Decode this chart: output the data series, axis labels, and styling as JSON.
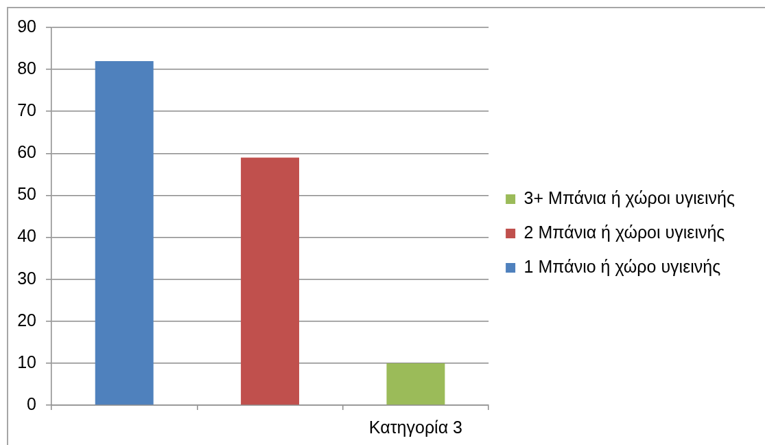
{
  "chart_data": {
    "type": "bar",
    "categories": [
      null,
      null,
      "Κατηγορία 3"
    ],
    "series": [
      {
        "name": "3+ Μπάνια ή χώροι υγιεινής",
        "color": "#9bbb59",
        "values": [
          null,
          null,
          10
        ]
      },
      {
        "name": "2 Μπάνια ή χώροι υγιεινής",
        "color": "#c0504d",
        "values": [
          null,
          59,
          null
        ]
      },
      {
        "name": "1 Μπάνιο ή χώρο υγιεινής",
        "color": "#4f81bd",
        "values": [
          82,
          null,
          null
        ]
      }
    ],
    "ylim": [
      0,
      90
    ],
    "yticks": [
      0,
      10,
      20,
      30,
      40,
      50,
      60,
      70,
      80,
      90
    ],
    "grid": "y",
    "legend": "right"
  }
}
